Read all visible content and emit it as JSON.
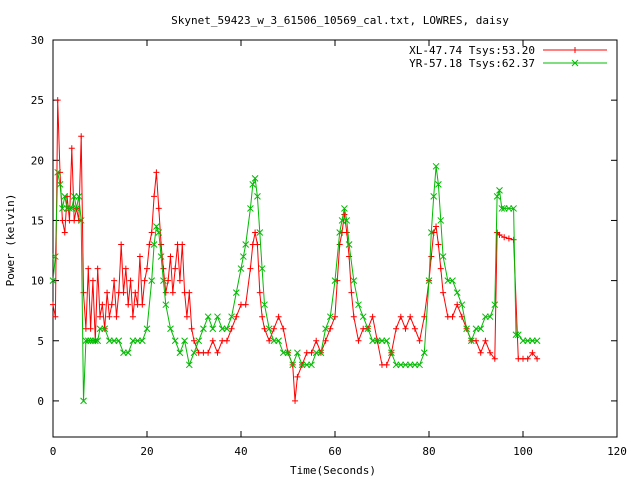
{
  "chart_data": {
    "type": "line",
    "title": "Skynet_59423_w_3_61506_10569_cal.txt, LOWRES, daisy",
    "xlabel": "Time(Seconds)",
    "ylabel": "Power (kelvin)",
    "xlim": [
      0,
      120
    ],
    "ylim": [
      -3,
      30
    ],
    "xticks": [
      0,
      20,
      40,
      60,
      80,
      100,
      120
    ],
    "yticks": [
      0,
      5,
      10,
      15,
      20,
      25,
      30
    ],
    "grid": false,
    "legend_position": "top-right",
    "series": [
      {
        "name": "XL-47.74 Tsys:53.20",
        "color": "#ff0000",
        "marker": "plus",
        "points": [
          [
            0,
            8
          ],
          [
            0.5,
            7
          ],
          [
            1,
            25
          ],
          [
            1.5,
            19
          ],
          [
            2,
            15
          ],
          [
            2.5,
            14
          ],
          [
            3,
            17
          ],
          [
            3.5,
            15
          ],
          [
            4,
            21
          ],
          [
            4.5,
            15
          ],
          [
            5,
            16
          ],
          [
            5.5,
            15
          ],
          [
            6,
            22
          ],
          [
            6.5,
            9
          ],
          [
            7,
            6
          ],
          [
            7.5,
            11
          ],
          [
            8,
            6
          ],
          [
            8.5,
            10
          ],
          [
            9,
            5
          ],
          [
            9.5,
            11
          ],
          [
            10,
            7
          ],
          [
            10.5,
            8
          ],
          [
            11,
            6
          ],
          [
            11.5,
            9
          ],
          [
            12,
            7
          ],
          [
            12.5,
            8
          ],
          [
            13,
            10
          ],
          [
            13.5,
            7
          ],
          [
            14,
            9
          ],
          [
            14.5,
            13
          ],
          [
            15,
            9
          ],
          [
            15.5,
            11
          ],
          [
            16,
            8
          ],
          [
            16.5,
            10
          ],
          [
            17,
            7
          ],
          [
            17.5,
            9
          ],
          [
            18,
            8
          ],
          [
            18.5,
            12
          ],
          [
            19,
            8
          ],
          [
            19.5,
            10
          ],
          [
            20,
            11
          ],
          [
            20.5,
            13
          ],
          [
            21,
            14
          ],
          [
            21.5,
            17
          ],
          [
            22,
            19
          ],
          [
            22.5,
            16
          ],
          [
            23,
            13
          ],
          [
            23.5,
            11
          ],
          [
            24,
            9
          ],
          [
            24.5,
            10
          ],
          [
            25,
            12
          ],
          [
            25.5,
            9
          ],
          [
            26,
            11
          ],
          [
            26.5,
            13
          ],
          [
            27,
            10
          ],
          [
            27.5,
            13
          ],
          [
            28,
            9
          ],
          [
            28.5,
            7
          ],
          [
            29,
            9
          ],
          [
            29.5,
            6
          ],
          [
            30,
            5
          ],
          [
            31,
            4
          ],
          [
            32,
            4
          ],
          [
            33,
            4
          ],
          [
            34,
            5
          ],
          [
            35,
            4
          ],
          [
            36,
            5
          ],
          [
            37,
            5
          ],
          [
            38,
            6
          ],
          [
            39,
            7
          ],
          [
            40,
            8
          ],
          [
            41,
            8
          ],
          [
            42,
            11
          ],
          [
            42.5,
            13
          ],
          [
            43,
            14
          ],
          [
            43.5,
            13
          ],
          [
            44,
            9
          ],
          [
            44.5,
            7
          ],
          [
            45,
            6
          ],
          [
            46,
            5
          ],
          [
            47,
            6
          ],
          [
            48,
            7
          ],
          [
            49,
            6
          ],
          [
            50,
            4
          ],
          [
            51,
            3
          ],
          [
            51.5,
            0
          ],
          [
            52,
            2
          ],
          [
            53,
            3
          ],
          [
            54,
            4
          ],
          [
            55,
            4
          ],
          [
            56,
            5
          ],
          [
            57,
            4
          ],
          [
            58,
            5
          ],
          [
            59,
            6
          ],
          [
            60,
            7
          ],
          [
            60.5,
            10
          ],
          [
            61,
            13
          ],
          [
            61.5,
            14
          ],
          [
            62,
            15.5
          ],
          [
            62.5,
            14
          ],
          [
            63,
            12
          ],
          [
            63.5,
            9
          ],
          [
            64,
            7
          ],
          [
            65,
            5
          ],
          [
            66,
            6
          ],
          [
            67,
            6
          ],
          [
            68,
            7
          ],
          [
            69,
            5
          ],
          [
            70,
            3
          ],
          [
            71,
            3
          ],
          [
            72,
            4
          ],
          [
            73,
            6
          ],
          [
            74,
            7
          ],
          [
            75,
            6
          ],
          [
            76,
            7
          ],
          [
            77,
            6
          ],
          [
            78,
            5
          ],
          [
            79,
            7
          ],
          [
            80,
            10
          ],
          [
            80.5,
            12
          ],
          [
            81,
            14
          ],
          [
            81.5,
            14.5
          ],
          [
            82,
            13
          ],
          [
            82.5,
            11
          ],
          [
            83,
            9
          ],
          [
            84,
            7
          ],
          [
            85,
            7
          ],
          [
            86,
            8
          ],
          [
            87,
            7
          ],
          [
            88,
            6
          ],
          [
            89,
            5
          ],
          [
            90,
            5
          ],
          [
            91,
            4
          ],
          [
            92,
            5
          ],
          [
            93,
            4
          ],
          [
            94,
            3.5
          ],
          [
            94.5,
            14
          ],
          [
            95,
            13.8
          ],
          [
            96,
            13.6
          ],
          [
            97,
            13.5
          ],
          [
            98,
            13.4
          ],
          [
            99,
            3.5
          ],
          [
            100,
            3.5
          ],
          [
            101,
            3.5
          ],
          [
            102,
            4
          ],
          [
            103,
            3.5
          ]
        ]
      },
      {
        "name": "YR-57.18 Tsys:62.37",
        "color": "#00bb00",
        "marker": "cross",
        "points": [
          [
            0,
            10
          ],
          [
            0.5,
            12
          ],
          [
            1,
            19
          ],
          [
            1.5,
            18
          ],
          [
            2,
            16
          ],
          [
            2.5,
            17
          ],
          [
            3,
            16
          ],
          [
            3.5,
            16
          ],
          [
            4,
            16
          ],
          [
            4.5,
            17
          ],
          [
            5,
            16
          ],
          [
            5.5,
            17
          ],
          [
            6,
            15
          ],
          [
            6.5,
            0
          ],
          [
            7,
            5
          ],
          [
            7.5,
            5
          ],
          [
            8,
            5
          ],
          [
            8.5,
            5
          ],
          [
            9,
            5
          ],
          [
            9.5,
            5
          ],
          [
            10,
            6
          ],
          [
            11,
            6
          ],
          [
            12,
            5
          ],
          [
            13,
            5
          ],
          [
            14,
            5
          ],
          [
            15,
            4
          ],
          [
            16,
            4
          ],
          [
            17,
            5
          ],
          [
            18,
            5
          ],
          [
            19,
            5
          ],
          [
            20,
            6
          ],
          [
            21,
            10
          ],
          [
            21.5,
            13
          ],
          [
            22,
            14.5
          ],
          [
            22.5,
            14
          ],
          [
            23,
            12
          ],
          [
            23.5,
            10
          ],
          [
            24,
            8
          ],
          [
            25,
            6
          ],
          [
            26,
            5
          ],
          [
            27,
            4
          ],
          [
            28,
            5
          ],
          [
            29,
            3
          ],
          [
            30,
            4
          ],
          [
            31,
            5
          ],
          [
            32,
            6
          ],
          [
            33,
            7
          ],
          [
            34,
            6
          ],
          [
            35,
            7
          ],
          [
            36,
            6
          ],
          [
            37,
            6
          ],
          [
            38,
            7
          ],
          [
            39,
            9
          ],
          [
            40,
            11
          ],
          [
            40.5,
            12
          ],
          [
            41,
            13
          ],
          [
            42,
            16
          ],
          [
            42.5,
            18
          ],
          [
            43,
            18.5
          ],
          [
            43.5,
            17
          ],
          [
            44,
            14
          ],
          [
            44.5,
            11
          ],
          [
            45,
            8
          ],
          [
            46,
            6
          ],
          [
            47,
            5
          ],
          [
            48,
            5
          ],
          [
            49,
            4
          ],
          [
            50,
            4
          ],
          [
            51,
            3
          ],
          [
            52,
            4
          ],
          [
            53,
            3
          ],
          [
            54,
            3
          ],
          [
            55,
            3
          ],
          [
            56,
            4
          ],
          [
            57,
            4
          ],
          [
            58,
            6
          ],
          [
            59,
            7
          ],
          [
            60,
            10
          ],
          [
            61,
            14
          ],
          [
            61.5,
            15
          ],
          [
            62,
            16
          ],
          [
            62.5,
            15
          ],
          [
            63,
            13
          ],
          [
            64,
            10
          ],
          [
            65,
            8
          ],
          [
            66,
            7
          ],
          [
            67,
            6
          ],
          [
            68,
            5
          ],
          [
            69,
            5
          ],
          [
            70,
            5
          ],
          [
            71,
            5
          ],
          [
            72,
            4
          ],
          [
            73,
            3
          ],
          [
            74,
            3
          ],
          [
            75,
            3
          ],
          [
            76,
            3
          ],
          [
            77,
            3
          ],
          [
            78,
            3
          ],
          [
            79,
            4
          ],
          [
            80,
            10
          ],
          [
            80.5,
            14
          ],
          [
            81,
            17
          ],
          [
            81.5,
            19.5
          ],
          [
            82,
            18
          ],
          [
            82.5,
            15
          ],
          [
            83,
            12
          ],
          [
            84,
            10
          ],
          [
            85,
            10
          ],
          [
            86,
            9
          ],
          [
            87,
            8
          ],
          [
            88,
            6
          ],
          [
            89,
            5
          ],
          [
            90,
            6
          ],
          [
            91,
            6
          ],
          [
            92,
            7
          ],
          [
            93,
            7
          ],
          [
            94,
            8
          ],
          [
            94.5,
            17
          ],
          [
            95,
            17.5
          ],
          [
            95.5,
            16
          ],
          [
            96,
            16
          ],
          [
            97,
            16
          ],
          [
            98,
            16
          ],
          [
            98.5,
            5.5
          ],
          [
            99,
            5.5
          ],
          [
            100,
            5
          ],
          [
            101,
            5
          ],
          [
            102,
            5
          ],
          [
            103,
            5
          ]
        ]
      }
    ]
  }
}
